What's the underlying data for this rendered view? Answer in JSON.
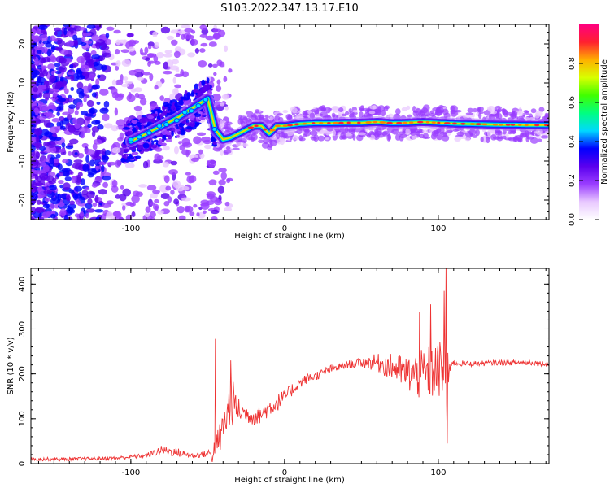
{
  "title": "S103.2022.347.13.17.E10",
  "chart_data": [
    {
      "type": "heatmap",
      "name": "spectrogram",
      "xlabel": "Height of straight line (km)",
      "ylabel": "Frequency (Hz)",
      "xlim": [
        -165,
        172
      ],
      "ylim": [
        -25,
        25
      ],
      "x_ticks": [
        -100,
        0,
        100
      ],
      "y_ticks": [
        -20,
        -10,
        0,
        10,
        20
      ],
      "colorbar": {
        "label": "Normalized spectral amplitude",
        "range": [
          0,
          1
        ],
        "ticks": [
          "0.0",
          "0.2",
          "0.4",
          "0.6",
          "0.8"
        ],
        "tick_values": [
          0.0,
          0.2,
          0.4,
          0.6,
          0.8
        ],
        "colors": [
          "#ffffff",
          "#e8c8ff",
          "#9a3dff",
          "#5a00ee",
          "#0000ff",
          "#00d8ff",
          "#00ff80",
          "#40ff00",
          "#d8ff00",
          "#ffb000",
          "#ff2030",
          "#ff0080"
        ]
      },
      "ridge": {
        "x": [
          -100,
          -90,
          -80,
          -70,
          -60,
          -50,
          -45,
          -40,
          -35,
          -30,
          -25,
          -20,
          -15,
          -10,
          -5,
          0,
          10,
          20,
          30,
          40,
          50,
          60,
          70,
          80,
          90,
          100,
          110,
          120,
          130,
          140,
          150,
          160,
          172
        ],
        "y": [
          -5,
          -3,
          -1,
          1,
          3.5,
          6,
          -2,
          -4.5,
          -4,
          -3,
          -2,
          -1,
          -1,
          -3,
          -1,
          -1,
          -0.5,
          -0.3,
          -0.3,
          -0.2,
          -0.2,
          0,
          -0.3,
          -0.2,
          0,
          -0.2,
          -0.4,
          -0.5,
          -0.6,
          -0.7,
          -0.7,
          -0.8,
          -0.8
        ]
      }
    },
    {
      "type": "line",
      "name": "snr",
      "xlabel": "Height of straight line (km)",
      "ylabel": "SNR (10 * v/v)",
      "xlim": [
        -165,
        172
      ],
      "ylim": [
        0,
        435
      ],
      "x_ticks": [
        -100,
        0,
        100
      ],
      "y_ticks": [
        0,
        100,
        200,
        300,
        400
      ],
      "color": "#ee3333",
      "envelope": {
        "x": [
          -165,
          -140,
          -110,
          -90,
          -80,
          -70,
          -60,
          -50,
          -45,
          -40,
          -38,
          -35,
          -30,
          -25,
          -20,
          -15,
          -10,
          -5,
          0,
          5,
          10,
          15,
          20,
          30,
          40,
          50,
          60,
          70,
          80,
          90,
          100,
          104,
          106,
          108,
          120,
          140,
          160,
          172
        ],
        "mean": [
          10,
          10,
          12,
          18,
          30,
          25,
          18,
          22,
          25,
          80,
          100,
          140,
          120,
          110,
          105,
          110,
          125,
          135,
          150,
          165,
          180,
          190,
          195,
          210,
          220,
          225,
          225,
          215,
          200,
          195,
          210,
          200,
          150,
          225,
          222,
          225,
          225,
          222
        ],
        "amplitude": [
          8,
          8,
          8,
          10,
          20,
          20,
          12,
          15,
          70,
          80,
          90,
          120,
          55,
          40,
          40,
          40,
          40,
          40,
          30,
          30,
          25,
          22,
          20,
          20,
          18,
          20,
          40,
          60,
          80,
          120,
          130,
          160,
          200,
          15,
          12,
          12,
          12,
          12
        ]
      },
      "spikes": [
        {
          "x": -45,
          "y": 278
        },
        {
          "x": -35,
          "y": 230
        },
        {
          "x": 88,
          "y": 338
        },
        {
          "x": 95,
          "y": 355
        },
        {
          "x": 104,
          "y": 385
        },
        {
          "x": 105,
          "y": 440
        },
        {
          "x": 106,
          "y": 45
        }
      ]
    }
  ]
}
